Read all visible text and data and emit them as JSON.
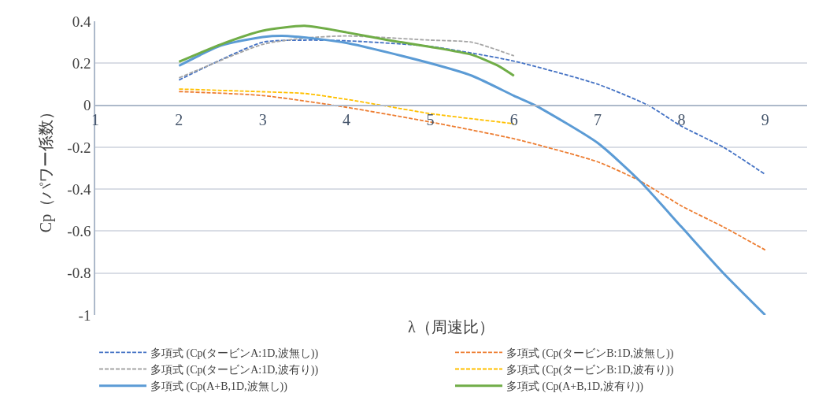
{
  "chart_data": {
    "type": "line",
    "xlabel": "λ（周速比）",
    "ylabel": "Cp（パワー係数）",
    "xlim": [
      1,
      9.5
    ],
    "xticks": [
      1,
      2,
      3,
      4,
      5,
      6,
      7,
      8,
      9
    ],
    "ylim": [
      -1,
      0.4
    ],
    "yticks": [
      0.4,
      0.2,
      0,
      -0.2,
      -0.4,
      -0.6,
      -0.8,
      -1
    ],
    "grid": "y",
    "legend": "bottom",
    "marker": "none",
    "series": [
      {
        "name": "多項式 (Cp(タービンA:1D,波無し))",
        "color": "#4472c4",
        "line_style": "dashed",
        "x": [
          2,
          3,
          3.5,
          4,
          5,
          6,
          7,
          7.6,
          8,
          8.5,
          9
        ],
        "values": [
          0.12,
          0.3,
          0.31,
          0.307,
          0.28,
          0.21,
          0.1,
          0,
          -0.1,
          -0.2,
          -0.33
        ]
      },
      {
        "name": "多項式 (Cp(タービンB:1D,波無し))",
        "color": "#ed7d31",
        "line_style": "dashed",
        "x": [
          2,
          3,
          4,
          5,
          6,
          7,
          7.5,
          8,
          8.5,
          9
        ],
        "values": [
          0.065,
          0.046,
          -0.01,
          -0.08,
          -0.16,
          -0.27,
          -0.36,
          -0.48,
          -0.58,
          -0.69
        ]
      },
      {
        "name": "多項式 (Cp(タービンA:1D,波有り))",
        "color": "#a5a5a5",
        "line_style": "dashed",
        "x": [
          2,
          3,
          3.5,
          4,
          5,
          5.5,
          6
        ],
        "values": [
          0.13,
          0.29,
          0.32,
          0.33,
          0.31,
          0.3,
          0.235
        ]
      },
      {
        "name": "多項式 (Cp(タービンB:1D,波有り))",
        "color": "#ffc000",
        "line_style": "dashed",
        "x": [
          2,
          3,
          3.5,
          4,
          4.5,
          5,
          6
        ],
        "values": [
          0.077,
          0.064,
          0.056,
          0.028,
          -0.006,
          -0.04,
          -0.088
        ]
      },
      {
        "name": "多項式 (Cp(A+B,1D,波無し))",
        "color": "#5b9bd5",
        "line_style": "solid",
        "x": [
          2,
          2.5,
          3,
          3.3,
          4,
          5,
          5.5,
          6,
          6.25,
          7,
          7.5,
          8,
          8.5,
          9
        ],
        "values": [
          0.188,
          0.284,
          0.325,
          0.33,
          0.297,
          0.2,
          0.14,
          0.045,
          0,
          -0.18,
          -0.36,
          -0.58,
          -0.8,
          -1
        ]
      },
      {
        "name": "多項式 (Cp(A+B,1D,波有り))",
        "color": "#70ad47",
        "line_style": "solid",
        "x": [
          2,
          2.5,
          3,
          3.5,
          4,
          4.5,
          5,
          5.5,
          5.8,
          6
        ],
        "values": [
          0.207,
          0.29,
          0.355,
          0.378,
          0.347,
          0.31,
          0.278,
          0.24,
          0.19,
          0.14
        ]
      }
    ]
  }
}
